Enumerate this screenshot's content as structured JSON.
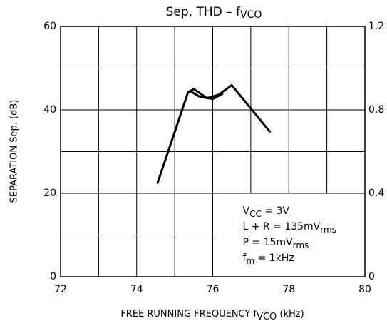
{
  "chart_data": {
    "type": "line",
    "title": {
      "text": "Sep, THD  –  f",
      "sub": "VCO"
    },
    "x_label": {
      "text": "FREE RUNNING FREQUENCY   f",
      "sub": "VCO",
      "rest": "   (kHz)"
    },
    "y_label": "SEPARATION   Sep.   (dB)",
    "xlim": [
      72,
      80
    ],
    "xticks": [
      72,
      74,
      76,
      78,
      80
    ],
    "ylim": [
      0,
      60
    ],
    "yticks": [
      0,
      20,
      40,
      60
    ],
    "y2lim": [
      0,
      1.2
    ],
    "y2ticks": [
      0,
      0.4,
      0.8,
      1.2
    ],
    "grid": true,
    "series": [
      {
        "color": "#000000",
        "x": [
          74.55,
          75.35,
          75.5,
          75.85,
          76.15,
          76.5,
          77.5
        ],
        "values": [
          22.5,
          44.2,
          45,
          42.8,
          43.6,
          45.9,
          34.8
        ]
      },
      {
        "color": "#000000",
        "x": [
          75.4,
          75.65,
          76.0,
          76.25
        ],
        "values": [
          44.5,
          43.2,
          42.6,
          43.8
        ]
      }
    ],
    "annotations": [
      {
        "text": "V",
        "sub": "CC",
        "rest": " = 3V"
      },
      {
        "text": "L + R = 135mV",
        "sub": "rms",
        "rest": ""
      },
      {
        "text": "P = 15mV",
        "sub": "rms",
        "rest": ""
      },
      {
        "text": "f",
        "sub": "m",
        "rest": " = 1kHz"
      }
    ]
  }
}
